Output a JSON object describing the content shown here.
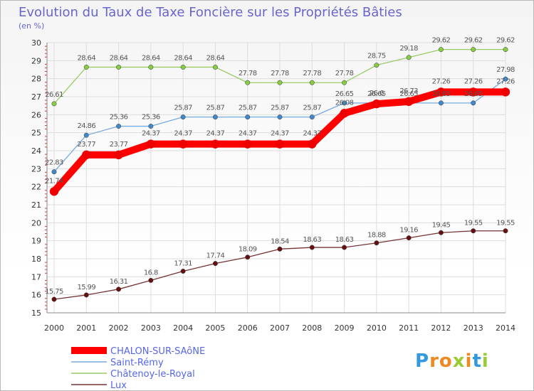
{
  "chart_data": {
    "type": "line",
    "title": "Evolution du Taux de Taxe Foncière sur les Propriétés Bâties",
    "subtitle": "(en %)",
    "categories": [
      "2000",
      "2001",
      "2002",
      "2003",
      "2004",
      "2005",
      "2006",
      "2007",
      "2008",
      "2009",
      "2010",
      "2011",
      "2012",
      "2013",
      "2014"
    ],
    "ylim": [
      15,
      30
    ],
    "yticks": [
      "15",
      "16",
      "17",
      "18",
      "19",
      "20",
      "21",
      "22",
      "23",
      "24",
      "25",
      "26",
      "27",
      "28",
      "29",
      "30"
    ],
    "grid": true,
    "legend_position": "bottom-left",
    "series": [
      {
        "name": "Châtenoy-le-Royal",
        "color": "#99cc66",
        "marker": "#88cc44",
        "line_width": 1.3,
        "values": [
          26.61,
          28.64,
          28.64,
          28.64,
          28.64,
          28.64,
          27.78,
          27.78,
          27.78,
          27.78,
          28.75,
          29.18,
          29.62,
          29.62,
          29.62
        ],
        "labels": [
          "26.61",
          "28.64",
          "28.64",
          "28.64",
          "28.64",
          "28.64",
          "27.78",
          "27.78",
          "27.78",
          "27.78",
          "28.75",
          "29.18",
          "29.62",
          "29.62",
          "29.62"
        ]
      },
      {
        "name": "Saint-Rémy",
        "color": "#77aadd",
        "marker": "#4488cc",
        "line_width": 1.3,
        "values": [
          22.83,
          24.86,
          25.36,
          25.36,
          25.87,
          25.87,
          25.87,
          25.87,
          25.87,
          26.65,
          26.65,
          26.65,
          26.65,
          26.65,
          27.98
        ],
        "labels": [
          "22.83",
          "24.86",
          "25.36",
          "25.36",
          "25.87",
          "25.87",
          "25.87",
          "25.87",
          "25.87",
          "26.65",
          "26.65",
          "26.65",
          "26.65",
          "26.65",
          "27.98"
        ]
      },
      {
        "name": "CHALON-SUR-SAôNE",
        "color": "#ff0000",
        "marker": "#ee0000",
        "line_width": 10,
        "values": [
          21.74,
          23.77,
          23.77,
          24.37,
          24.37,
          24.37,
          24.37,
          24.37,
          24.37,
          26.08,
          26.6,
          26.73,
          27.26,
          27.26,
          27.26
        ],
        "labels": [
          "21.74",
          "23.77",
          "23.77",
          "24.37",
          "24.37",
          "24.37",
          "24.37",
          "24.37",
          "24.37",
          "26.08",
          "26.6",
          "26.73",
          "27.26",
          "27.26",
          "27.26"
        ]
      },
      {
        "name": "Lux",
        "color": "#773333",
        "marker": "#661111",
        "line_width": 1.3,
        "values": [
          15.75,
          15.99,
          16.31,
          16.8,
          17.31,
          17.74,
          18.09,
          18.54,
          18.63,
          18.63,
          18.88,
          19.16,
          19.45,
          19.55,
          19.55
        ],
        "labels": [
          "15.75",
          "15.99",
          "16.31",
          "16.8",
          "17.31",
          "17.74",
          "18.09",
          "18.54",
          "18.63",
          "18.63",
          "18.88",
          "19.16",
          "19.45",
          "19.55",
          "19.55"
        ]
      }
    ],
    "legend_order": [
      "CHALON-SUR-SAôNE",
      "Saint-Rémy",
      "Châtenoy-le-Royal",
      "Lux"
    ]
  },
  "watermark": {
    "text": "Proxiti",
    "letters": [
      "P",
      "r",
      "o",
      "x",
      "i",
      "t",
      "i"
    ],
    "letter_colors": [
      "#3399dd",
      "#ee8822",
      "#ee8822",
      "#99cc33",
      "#ee8822",
      "#3399dd",
      "#99cc33"
    ]
  }
}
